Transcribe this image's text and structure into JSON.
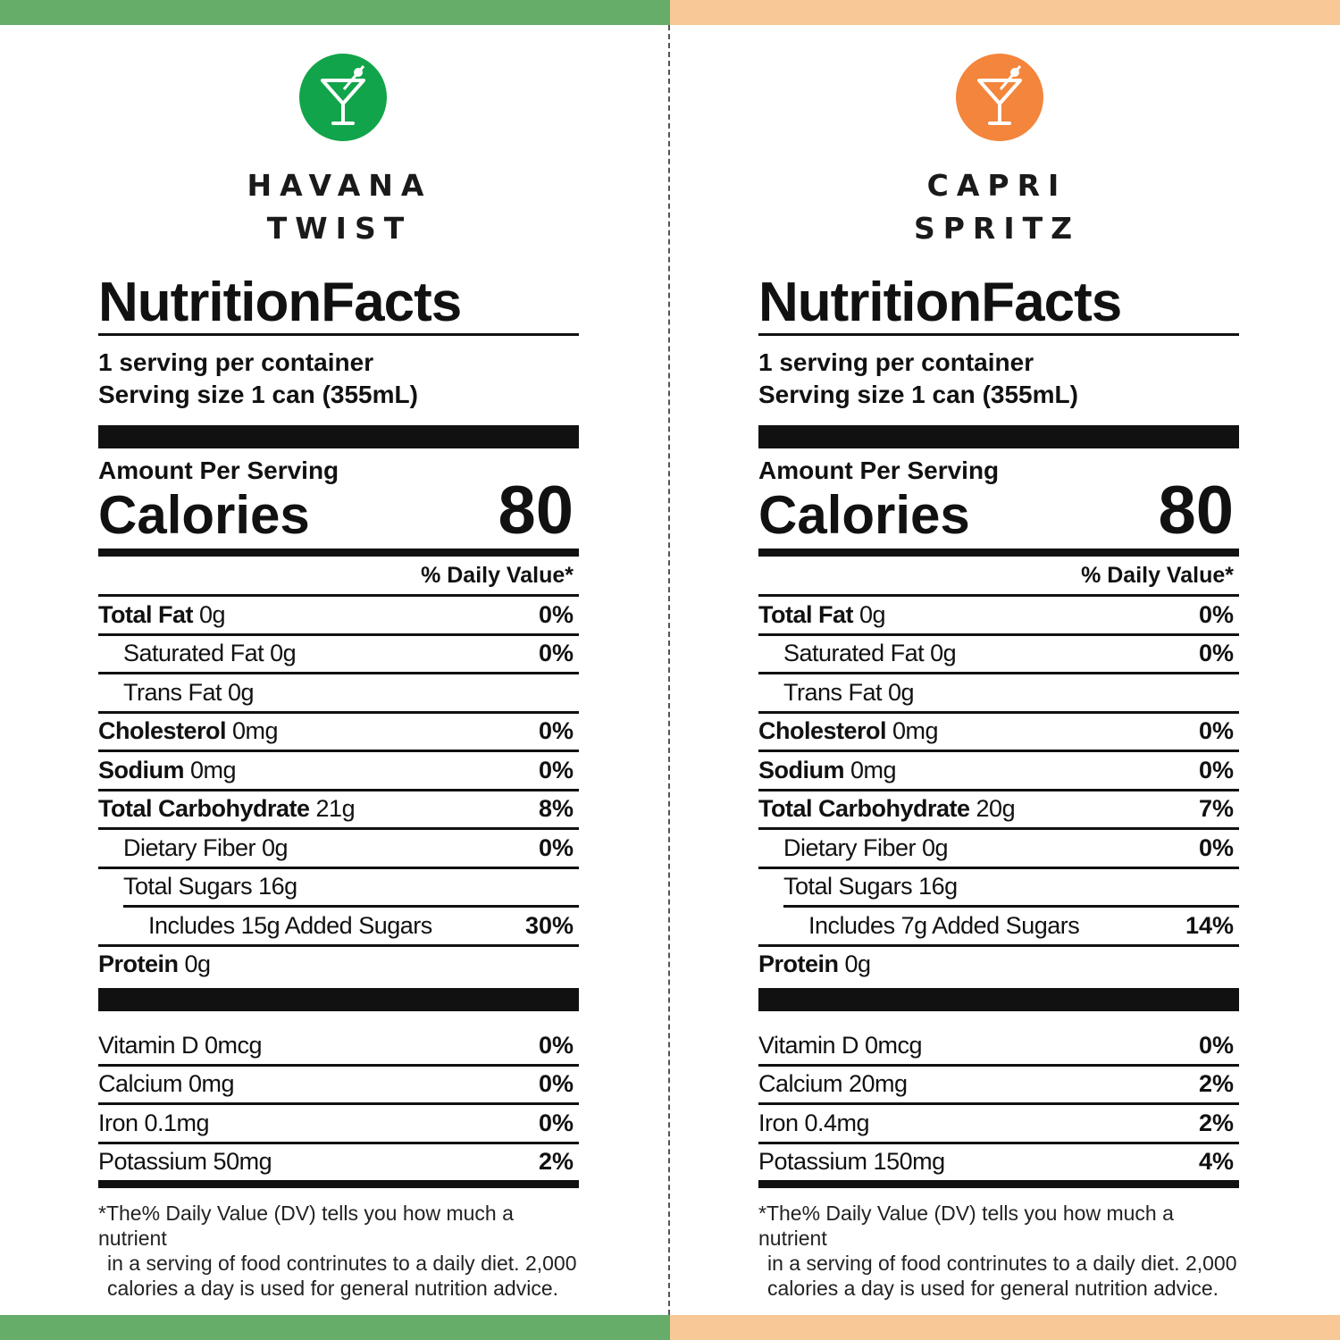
{
  "colors": {
    "left_accent": "#66ad6a",
    "left_logo": "#12a44a",
    "right_accent": "#f8c896",
    "right_logo": "#f3853c"
  },
  "footnote": {
    "line1": "*The% Daily Value (DV) tells you how much a nutrient",
    "line2": "in a serving of food contrinutes to a daily diet. 2,000",
    "line3": "calories a day is used for general nutrition advice."
  },
  "left": {
    "brand_line1": "HAVANA",
    "brand_line2": "TWIST",
    "logo_icon": "cocktail-glass-icon",
    "title": "NutritionFacts",
    "servings": "1 serving per container",
    "serving_size": "Serving size 1 can (355mL)",
    "amount_per_serving": "Amount Per Serving",
    "calories_label": "Calories",
    "calories_value": "80",
    "dv_header": "% Daily Value*",
    "rows": [
      {
        "bold": "Total Fat",
        "amount": " 0g",
        "pct": "0%"
      },
      {
        "bold": "",
        "amount": "Saturated Fat 0g",
        "pct": "0%"
      },
      {
        "bold": "",
        "amount": "Trans Fat 0g",
        "pct": ""
      },
      {
        "bold": "Cholesterol",
        "amount": " 0mg",
        "pct": "0%"
      },
      {
        "bold": "Sodium",
        "amount": " 0mg",
        "pct": "0%"
      },
      {
        "bold": "Total Carbohydrate",
        "amount": " 21g",
        "pct": "8%"
      },
      {
        "bold": "",
        "amount": "Dietary Fiber 0g",
        "pct": "0%"
      },
      {
        "bold": "",
        "amount": "Total Sugars 16g",
        "pct": ""
      },
      {
        "bold": "",
        "amount": "Includes 15g Added Sugars",
        "pct": "30%"
      },
      {
        "bold": "Protein",
        "amount": " 0g",
        "pct": ""
      }
    ],
    "vitamins": [
      {
        "name": "Vitamin D 0mcg",
        "pct": "0%"
      },
      {
        "name": "Calcium 0mg",
        "pct": "0%"
      },
      {
        "name": "Iron 0.1mg",
        "pct": "0%"
      },
      {
        "name": "Potassium 50mg",
        "pct": "2%"
      }
    ]
  },
  "right": {
    "brand_line1": "CAPRI",
    "brand_line2": "SPRITZ",
    "logo_icon": "cocktail-glass-icon",
    "title": "NutritionFacts",
    "servings": "1 serving per container",
    "serving_size": "Serving size 1 can (355mL)",
    "amount_per_serving": "Amount Per Serving",
    "calories_label": "Calories",
    "calories_value": "80",
    "dv_header": "% Daily Value*",
    "rows": [
      {
        "bold": "Total Fat",
        "amount": " 0g",
        "pct": "0%"
      },
      {
        "bold": "",
        "amount": "Saturated Fat 0g",
        "pct": "0%"
      },
      {
        "bold": "",
        "amount": "Trans Fat 0g",
        "pct": ""
      },
      {
        "bold": "Cholesterol",
        "amount": " 0mg",
        "pct": "0%"
      },
      {
        "bold": "Sodium",
        "amount": " 0mg",
        "pct": "0%"
      },
      {
        "bold": "Total Carbohydrate",
        "amount": " 20g",
        "pct": "7%"
      },
      {
        "bold": "",
        "amount": "Dietary Fiber 0g",
        "pct": "0%"
      },
      {
        "bold": "",
        "amount": "Total Sugars 16g",
        "pct": ""
      },
      {
        "bold": "",
        "amount": "Includes 7g Added Sugars",
        "pct": "14%"
      },
      {
        "bold": "Protein",
        "amount": " 0g",
        "pct": ""
      }
    ],
    "vitamins": [
      {
        "name": "Vitamin D 0mcg",
        "pct": "0%"
      },
      {
        "name": "Calcium 20mg",
        "pct": "2%"
      },
      {
        "name": "Iron 0.4mg",
        "pct": "2%"
      },
      {
        "name": "Potassium 150mg",
        "pct": "4%"
      }
    ]
  }
}
